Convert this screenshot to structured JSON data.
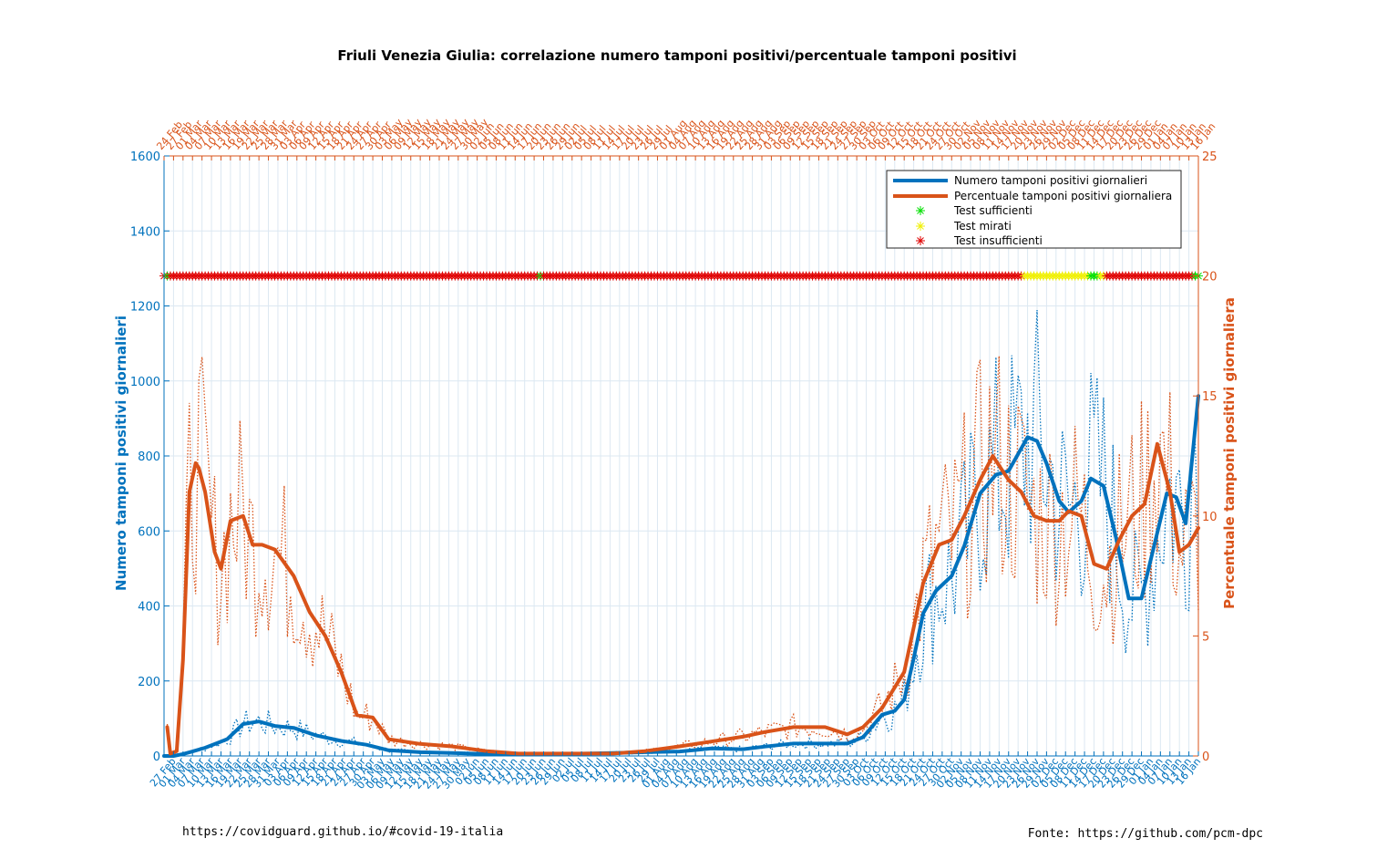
{
  "title": "Friuli Venezia Giulia: correlazione numero tamponi positivi/percentuale tamponi positivi",
  "footer_left": "https://covidguard.github.io/#covid-19-italia",
  "footer_right": "Fonte: https://github.com/pcm-dpc",
  "colors": {
    "blue": "#0072BD",
    "orange": "#D95319",
    "green": "#00E000",
    "yellow": "#F0F000",
    "red": "#E00000",
    "grid": "#DCE8F2"
  },
  "chart_data": {
    "type": "line",
    "title": "Friuli Venezia Giulia: correlazione numero tamponi positivi/percentuale tamponi positivi",
    "xlabel": "",
    "ylabel_left": "Numero tamponi positivi giornalieri",
    "ylabel_right": "Percentuale tamponi positivi giornaliera",
    "ylim_left": [
      0,
      1600
    ],
    "yticks_left": [
      0,
      200,
      400,
      600,
      800,
      1000,
      1200,
      1400,
      1600
    ],
    "ylim_right": [
      0,
      25
    ],
    "yticks_right": [
      0,
      5,
      10,
      15,
      20,
      25
    ],
    "x_start": "2020-02-24",
    "x_end": "2021-01-16",
    "x_tick_labels_bottom": [
      "27 Feb",
      "01 Mar",
      "04 Mar",
      "07 Mar",
      "10 Mar",
      "13 Mar",
      "16 Mar",
      "19 Mar",
      "22 Mar",
      "25 Mar",
      "28 Mar",
      "31 Mar",
      "03 Apr",
      "06 Apr",
      "09 Apr",
      "12 Apr",
      "15 Apr",
      "18 Apr",
      "21 Apr",
      "24 Apr",
      "27 Apr",
      "30 Apr",
      "03 May",
      "06 May",
      "09 May",
      "12 May",
      "15 May",
      "18 May",
      "21 May",
      "24 May",
      "27 May",
      "30 May",
      "02 Jun",
      "05 Jun",
      "08 Jun",
      "11 Jun",
      "14 Jun",
      "17 Jun",
      "20 Jun",
      "23 Jun",
      "26 Jun",
      "29 Jun",
      "02 Jul",
      "05 Jul",
      "08 Jul",
      "11 Jul",
      "14 Jul",
      "17 Jul",
      "20 Jul",
      "23 Jul",
      "26 Jul",
      "29 Jul",
      "01 Aug",
      "04 Aug",
      "07 Aug",
      "10 Aug",
      "13 Aug",
      "16 Aug",
      "19 Aug",
      "22 Aug",
      "25 Aug",
      "28 Aug",
      "31 Aug",
      "03 Sep",
      "06 Sep",
      "09 Sep",
      "12 Sep",
      "15 Sep",
      "18 Sep",
      "21 Sep",
      "24 Sep",
      "27 Sep",
      "30 Sep",
      "03 Oct",
      "06 Oct",
      "09 Oct",
      "12 Oct",
      "15 Oct",
      "18 Oct",
      "21 Oct",
      "24 Oct",
      "27 Oct",
      "30 Oct",
      "02 Nov",
      "05 Nov",
      "08 Nov",
      "11 Nov",
      "14 Nov",
      "17 Nov",
      "20 Nov",
      "23 Nov",
      "26 Nov",
      "29 Nov",
      "02 Dec",
      "05 Dec",
      "08 Dec",
      "11 Dec",
      "14 Dec",
      "17 Dec",
      "20 Dec",
      "23 Dec",
      "26 Dec",
      "29 Dec",
      "01 Jan",
      "04 Jan",
      "07 Jan",
      "10 Jan",
      "13 Jan",
      "16 Jan"
    ],
    "x_tick_labels_top": [
      "24 Feb",
      "27 Feb",
      "01 Mar",
      "04 Mar",
      "07 Mar",
      "10 Mar",
      "13 Mar",
      "16 Mar",
      "19 Mar",
      "22 Mar",
      "25 Mar",
      "28 Mar",
      "31 Mar",
      "03 Apr",
      "06 Apr",
      "09 Apr",
      "12 Apr",
      "15 Apr",
      "18 Apr",
      "21 Apr",
      "24 Apr",
      "27 Apr",
      "30 Apr",
      "03 May",
      "06 May",
      "09 May",
      "12 May",
      "15 May",
      "18 May",
      "21 May",
      "24 May",
      "27 May",
      "30 May",
      "02 Jun",
      "05 Jun",
      "08 Jun",
      "11 Jun",
      "14 Jun",
      "17 Jun",
      "20 Jun",
      "23 Jun",
      "26 Jun",
      "29 Jun",
      "02 Jul",
      "05 Jul",
      "08 Jul",
      "11 Jul",
      "14 Jul",
      "17 Jul",
      "20 Jul",
      "23 Jul",
      "26 Jul",
      "29 Jul",
      "01 Aug",
      "04 Aug",
      "07 Aug",
      "10 Aug",
      "13 Aug",
      "16 Aug",
      "19 Aug",
      "22 Aug",
      "25 Aug",
      "28 Aug",
      "31 Aug",
      "03 Sep",
      "06 Sep",
      "09 Sep",
      "12 Sep",
      "15 Sep",
      "18 Sep",
      "21 Sep",
      "24 Sep",
      "27 Sep",
      "30 Sep",
      "03 Oct",
      "06 Oct",
      "09 Oct",
      "12 Oct",
      "15 Oct",
      "18 Oct",
      "21 Oct",
      "24 Oct",
      "27 Oct",
      "30 Oct",
      "02 Nov",
      "05 Nov",
      "08 Nov",
      "11 Nov",
      "14 Nov",
      "17 Nov",
      "20 Nov",
      "23 Nov",
      "26 Nov",
      "29 Nov",
      "02 Dec",
      "05 Dec",
      "08 Dec",
      "11 Dec",
      "14 Dec",
      "17 Dec",
      "20 Dec",
      "23 Dec",
      "26 Dec",
      "29 Dec",
      "01 Jan",
      "04 Jan",
      "07 Jan",
      "10 Jan",
      "13 Jan",
      "16 Jan"
    ],
    "grid": true,
    "legend_position": "top-right",
    "series": [
      {
        "name": "Numero tamponi positivi giornalieri",
        "axis": "left",
        "style": "thick-line",
        "x": [
          "2020-02-24",
          "2020-02-27",
          "2020-03-01",
          "2020-03-04",
          "2020-03-08",
          "2020-03-12",
          "2020-03-15",
          "2020-03-20",
          "2020-03-25",
          "2020-03-30",
          "2020-04-05",
          "2020-04-12",
          "2020-04-20",
          "2020-04-28",
          "2020-05-05",
          "2020-05-15",
          "2020-05-25",
          "2020-06-05",
          "2020-06-15",
          "2020-06-25",
          "2020-07-05",
          "2020-07-15",
          "2020-07-25",
          "2020-08-05",
          "2020-08-15",
          "2020-08-25",
          "2020-09-01",
          "2020-09-10",
          "2020-09-20",
          "2020-09-27",
          "2020-10-02",
          "2020-10-08",
          "2020-10-12",
          "2020-10-15",
          "2020-10-18",
          "2020-10-21",
          "2020-10-25",
          "2020-10-30",
          "2020-11-03",
          "2020-11-08",
          "2020-11-13",
          "2020-11-17",
          "2020-11-21",
          "2020-11-23",
          "2020-11-26",
          "2020-11-29",
          "2020-12-03",
          "2020-12-06",
          "2020-12-10",
          "2020-12-13",
          "2020-12-17",
          "2020-12-21",
          "2020-12-25",
          "2020-12-29",
          "2021-01-02",
          "2021-01-06",
          "2021-01-09",
          "2021-01-12",
          "2021-01-16"
        ],
        "values": [
          0,
          0,
          5,
          12,
          22,
          35,
          45,
          85,
          92,
          80,
          75,
          55,
          40,
          30,
          15,
          10,
          8,
          5,
          6,
          5,
          6,
          8,
          10,
          12,
          20,
          18,
          25,
          33,
          33,
          33,
          50,
          110,
          120,
          150,
          260,
          380,
          440,
          480,
          560,
          700,
          750,
          760,
          820,
          850,
          840,
          780,
          680,
          650,
          680,
          740,
          720,
          580,
          420,
          420,
          560,
          700,
          690,
          620,
          960
        ]
      },
      {
        "name": "Percentuale tamponi positivi giornaliera",
        "axis": "right",
        "style": "thick-line",
        "x": [
          "2020-02-25",
          "2020-02-26",
          "2020-02-28",
          "2020-03-01",
          "2020-03-03",
          "2020-03-05",
          "2020-03-06",
          "2020-03-08",
          "2020-03-11",
          "2020-03-13",
          "2020-03-16",
          "2020-03-20",
          "2020-03-23",
          "2020-03-26",
          "2020-03-30",
          "2020-04-05",
          "2020-04-10",
          "2020-04-15",
          "2020-04-20",
          "2020-04-25",
          "2020-04-30",
          "2020-05-05",
          "2020-05-15",
          "2020-05-25",
          "2020-06-05",
          "2020-06-15",
          "2020-06-25",
          "2020-07-05",
          "2020-07-15",
          "2020-07-25",
          "2020-08-05",
          "2020-08-15",
          "2020-08-25",
          "2020-09-01",
          "2020-09-10",
          "2020-09-20",
          "2020-09-27",
          "2020-10-02",
          "2020-10-08",
          "2020-10-15",
          "2020-10-21",
          "2020-10-26",
          "2020-10-30",
          "2020-11-03",
          "2020-11-08",
          "2020-11-12",
          "2020-11-17",
          "2020-11-21",
          "2020-11-25",
          "2020-11-29",
          "2020-12-03",
          "2020-12-06",
          "2020-12-10",
          "2020-12-14",
          "2020-12-18",
          "2020-12-22",
          "2020-12-26",
          "2020-12-30",
          "2021-01-03",
          "2021-01-07",
          "2021-01-10",
          "2021-01-13",
          "2021-01-16"
        ],
        "values": [
          1.2,
          0.1,
          0.2,
          4.0,
          11.0,
          12.2,
          12.0,
          11.0,
          8.5,
          7.8,
          9.8,
          10.0,
          8.8,
          8.8,
          8.6,
          7.5,
          6.0,
          5.0,
          3.5,
          1.7,
          1.6,
          0.7,
          0.5,
          0.4,
          0.2,
          0.1,
          0.1,
          0.1,
          0.1,
          0.2,
          0.4,
          0.6,
          0.8,
          1.0,
          1.2,
          1.2,
          0.9,
          1.2,
          2.0,
          3.5,
          7.2,
          8.8,
          9.0,
          10.0,
          11.5,
          12.5,
          11.5,
          11.0,
          10.0,
          9.8,
          9.8,
          10.2,
          10.0,
          8.0,
          7.8,
          9.0,
          10.0,
          10.5,
          13.0,
          11.0,
          8.5,
          8.8,
          9.5
        ]
      }
    ],
    "markers": {
      "level_percent": 20,
      "legend": [
        "Test sufficienti",
        "Test mirati",
        "Test insufficienti"
      ],
      "sufficienti_dates": [
        "2020-02-25",
        "2020-06-22",
        "2020-12-13",
        "2020-12-14",
        "2020-12-15",
        "2021-01-15",
        "2021-01-16"
      ],
      "mirati_dates": [
        "2020-11-22",
        "2020-11-23",
        "2020-11-24",
        "2020-11-25",
        "2020-11-26",
        "2020-11-27",
        "2020-11-28",
        "2020-11-29",
        "2020-11-30",
        "2020-12-01",
        "2020-12-02",
        "2020-12-03",
        "2020-12-04",
        "2020-12-05",
        "2020-12-06",
        "2020-12-07",
        "2020-12-08",
        "2020-12-09",
        "2020-12-10",
        "2020-12-11",
        "2020-12-12",
        "2020-12-16",
        "2020-12-17"
      ]
    }
  }
}
